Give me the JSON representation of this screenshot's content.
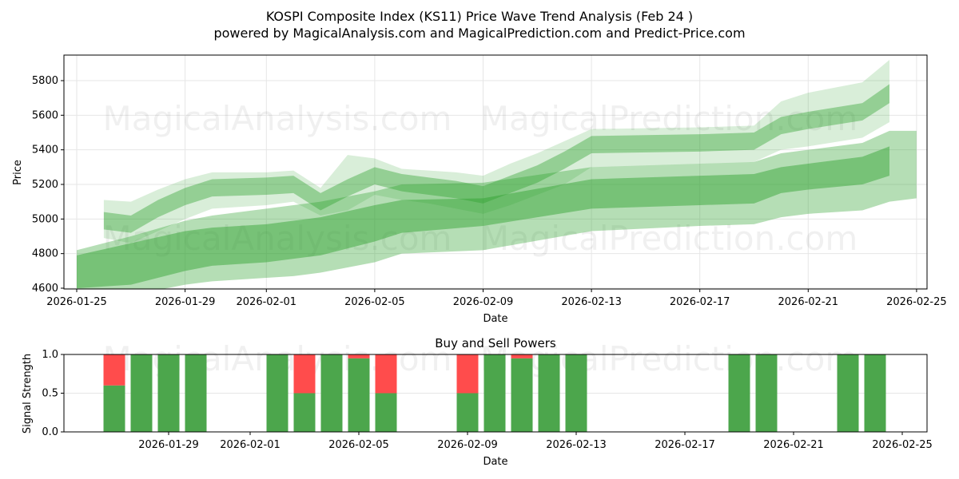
{
  "chart_data": [
    {
      "type": "area",
      "title": "KOSPI Composite Index (KS11) Price Wave Trend Analysis (Feb 24 )",
      "subtitle": "powered by MagicalAnalysis.com and MagicalPrediction.com and Predict-Price.com",
      "xlabel": "Date",
      "ylabel": "Price",
      "ylim": [
        4590,
        5940
      ],
      "xlim": [
        "2026-01-24",
        "2026-02-25"
      ],
      "grid": true,
      "x_ticks": [
        "2026-01-25",
        "2026-01-29",
        "2026-02-01",
        "2026-02-05",
        "2026-02-09",
        "2026-02-13",
        "2026-02-17",
        "2026-02-21",
        "2026-02-25"
      ],
      "y_ticks": [
        4600,
        4800,
        5000,
        5200,
        5400,
        5600,
        5800
      ],
      "watermarks": [
        "MagicalAnalysis.com",
        "MagicalPrediction.com"
      ],
      "color": "#2ca02c",
      "bands": [
        {
          "name": "upper-wave-outer",
          "opacity": 0.18,
          "dates": [
            "2026-01-26",
            "2026-01-27",
            "2026-01-28",
            "2026-01-29",
            "2026-01-30",
            "2026-02-01",
            "2026-02-02",
            "2026-02-03",
            "2026-02-04",
            "2026-02-05",
            "2026-02-06",
            "2026-02-07",
            "2026-02-08",
            "2026-02-09",
            "2026-02-10",
            "2026-02-11",
            "2026-02-12",
            "2026-02-13",
            "2026-02-17",
            "2026-02-19",
            "2026-02-20",
            "2026-02-21",
            "2026-02-23",
            "2026-02-24"
          ],
          "upper": [
            5110,
            5100,
            5170,
            5230,
            5270,
            5270,
            5280,
            5180,
            5370,
            5350,
            5290,
            5280,
            5270,
            5250,
            5320,
            5380,
            5450,
            5520,
            5530,
            5540,
            5680,
            5730,
            5790,
            5920
          ],
          "lower": [
            4890,
            4860,
            4930,
            5000,
            5060,
            5080,
            5100,
            5020,
            5050,
            5140,
            5110,
            5090,
            5060,
            5030,
            5080,
            5140,
            5200,
            5300,
            5320,
            5330,
            5400,
            5420,
            5470,
            5560
          ]
        },
        {
          "name": "upper-wave-inner",
          "opacity": 0.4,
          "dates": [
            "2026-01-26",
            "2026-01-27",
            "2026-01-28",
            "2026-01-29",
            "2026-01-30",
            "2026-02-01",
            "2026-02-02",
            "2026-02-03",
            "2026-02-04",
            "2026-02-05",
            "2026-02-06",
            "2026-02-07",
            "2026-02-08",
            "2026-02-09",
            "2026-02-10",
            "2026-02-11",
            "2026-02-12",
            "2026-02-13",
            "2026-02-17",
            "2026-02-19",
            "2026-02-20",
            "2026-02-21",
            "2026-02-23",
            "2026-02-24"
          ],
          "upper": [
            5040,
            5020,
            5110,
            5180,
            5230,
            5240,
            5250,
            5150,
            5230,
            5300,
            5260,
            5240,
            5220,
            5190,
            5250,
            5310,
            5390,
            5480,
            5490,
            5500,
            5590,
            5620,
            5670,
            5780
          ],
          "lower": [
            4940,
            4920,
            5010,
            5080,
            5130,
            5140,
            5150,
            5050,
            5130,
            5200,
            5160,
            5140,
            5120,
            5090,
            5150,
            5210,
            5290,
            5380,
            5390,
            5400,
            5490,
            5520,
            5570,
            5670
          ]
        },
        {
          "name": "lower-wave-outer",
          "opacity": 0.35,
          "dates": [
            "2026-01-25",
            "2026-01-27",
            "2026-01-29",
            "2026-01-30",
            "2026-02-01",
            "2026-02-02",
            "2026-02-03",
            "2026-02-05",
            "2026-02-06",
            "2026-02-09",
            "2026-02-13",
            "2026-02-17",
            "2026-02-19",
            "2026-02-20",
            "2026-02-21",
            "2026-02-23",
            "2026-02-24",
            "2026-02-25"
          ],
          "upper": [
            4820,
            4900,
            4990,
            5020,
            5060,
            5080,
            5100,
            5160,
            5200,
            5210,
            5300,
            5320,
            5330,
            5380,
            5400,
            5440,
            5510,
            5510
          ],
          "lower": [
            4560,
            4560,
            4620,
            4640,
            4660,
            4670,
            4690,
            4750,
            4800,
            4820,
            4930,
            4960,
            4970,
            5010,
            5030,
            5050,
            5100,
            5120
          ]
        },
        {
          "name": "lower-wave-inner",
          "opacity": 0.45,
          "dates": [
            "2026-01-25",
            "2026-01-27",
            "2026-01-29",
            "2026-01-30",
            "2026-02-01",
            "2026-02-02",
            "2026-02-03",
            "2026-02-05",
            "2026-02-06",
            "2026-02-09",
            "2026-02-13",
            "2026-02-17",
            "2026-02-19",
            "2026-02-20",
            "2026-02-21",
            "2026-02-23",
            "2026-02-24"
          ],
          "upper": [
            4790,
            4860,
            4930,
            4950,
            4970,
            4990,
            5010,
            5080,
            5110,
            5120,
            5230,
            5250,
            5260,
            5300,
            5320,
            5360,
            5420
          ],
          "lower": [
            4600,
            4620,
            4700,
            4730,
            4750,
            4770,
            4790,
            4870,
            4920,
            4960,
            5060,
            5080,
            5090,
            5150,
            5170,
            5200,
            5250
          ]
        }
      ]
    },
    {
      "type": "bar",
      "title": "Buy and Sell Powers",
      "xlabel": "Date",
      "ylabel": "Signal Strength",
      "ylim": [
        0,
        1
      ],
      "y_ticks": [
        "0.0",
        "0.5",
        "1.0"
      ],
      "x_ticks": [
        "2026-01-29",
        "2026-02-01",
        "2026-02-05",
        "2026-02-09",
        "2026-02-13",
        "2026-02-17",
        "2026-02-21",
        "2026-02-25"
      ],
      "buy_color": "#4ca64c",
      "sell_color": "#ff4c4c",
      "dates": [
        "2026-01-27",
        "2026-01-28",
        "2026-01-29",
        "2026-01-30",
        "2026-02-02",
        "2026-02-03",
        "2026-02-04",
        "2026-02-05",
        "2026-02-06",
        "2026-02-09",
        "2026-02-10",
        "2026-02-11",
        "2026-02-12",
        "2026-02-13",
        "2026-02-19",
        "2026-02-20",
        "2026-02-23",
        "2026-02-24"
      ],
      "buy": [
        0.6,
        1,
        1,
        1,
        1,
        0.5,
        1,
        0.95,
        0.5,
        0.5,
        1,
        0.95,
        1,
        1,
        1,
        1,
        1,
        1
      ],
      "sell": [
        0.4,
        0,
        0,
        0,
        0,
        0.5,
        0,
        0.05,
        0.5,
        0.5,
        0,
        0.05,
        0,
        0,
        0,
        0,
        0,
        0
      ]
    }
  ]
}
